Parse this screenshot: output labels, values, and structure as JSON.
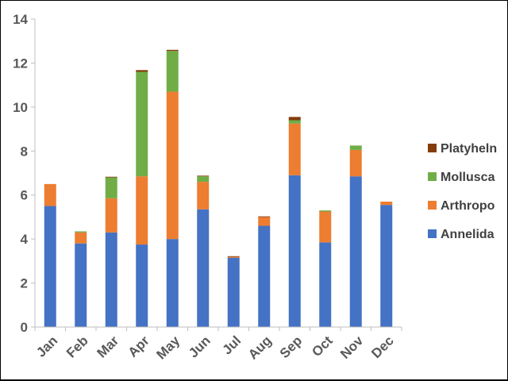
{
  "chart_data": {
    "type": "bar",
    "stacked": true,
    "title": "",
    "xlabel": "",
    "ylabel": "",
    "categories": [
      "Jan",
      "Feb",
      "Mar",
      "Apr",
      "May",
      "Jun",
      "Jul",
      "Aug",
      "Sep",
      "Oct",
      "Nov",
      "Dec"
    ],
    "ylim": [
      0,
      14
    ],
    "yticks": [
      0,
      2,
      4,
      6,
      8,
      10,
      12,
      14
    ],
    "grid": false,
    "legend_position": "right",
    "series": [
      {
        "name": "Annelida",
        "color": "#4472C4",
        "values": [
          5.5,
          3.8,
          4.3,
          3.75,
          4.0,
          5.35,
          3.15,
          4.6,
          6.9,
          3.85,
          6.85,
          5.55
        ]
      },
      {
        "name": "Arthropo",
        "color": "#ED7D31",
        "values": [
          1.0,
          0.5,
          1.55,
          3.1,
          6.7,
          1.25,
          0.05,
          0.4,
          2.35,
          1.4,
          1.2,
          0.15
        ]
      },
      {
        "name": "Mollusca",
        "color": "#70AD47",
        "values": [
          0.0,
          0.05,
          0.95,
          4.75,
          1.85,
          0.25,
          0.0,
          0.0,
          0.15,
          0.05,
          0.2,
          0.0
        ]
      },
      {
        "name": "Platyheln",
        "color": "#843C0C",
        "values": [
          0.0,
          0.0,
          0.03,
          0.08,
          0.05,
          0.03,
          0.02,
          0.03,
          0.15,
          0.0,
          0.0,
          0.0
        ]
      }
    ]
  }
}
